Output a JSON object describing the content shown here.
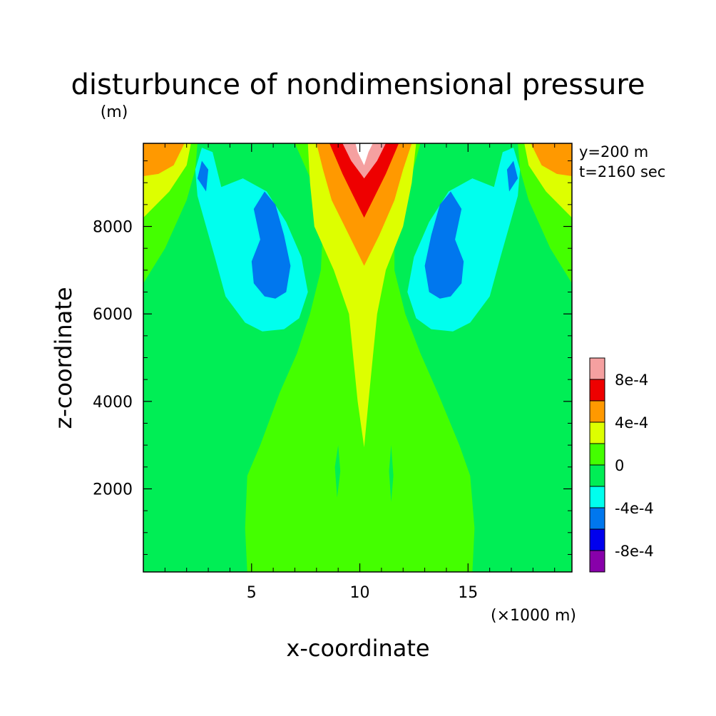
{
  "chart_data": {
    "type": "heatmap",
    "title": "disturbunce of nondimensional pressure",
    "ylabel_unit": "(m)",
    "xlabel": "x-coordinate",
    "xlabel_unit": "(×1000 m)",
    "ylabel": "z-coordinate",
    "annotations": [
      "y=200 m",
      "t=2160 sec"
    ],
    "xlim": [
      0,
      19.8
    ],
    "ylim": [
      100,
      9900
    ],
    "x_ticks": [
      {
        "value": 5,
        "label": "5"
      },
      {
        "value": 10,
        "label": "10"
      },
      {
        "value": 15,
        "label": "15"
      }
    ],
    "y_ticks": [
      {
        "value": 2000,
        "label": "2000"
      },
      {
        "value": 4000,
        "label": "4000"
      },
      {
        "value": 6000,
        "label": "6000"
      },
      {
        "value": 8000,
        "label": "8000"
      }
    ],
    "colorbar": {
      "levels": [
        -0.001,
        -0.0008,
        -0.0006,
        -0.0004,
        -0.0002,
        0,
        0.0002,
        0.0004,
        0.0006,
        0.0008,
        0.001
      ],
      "colors": [
        "#8800aa",
        "#0000ee",
        "#0077ee",
        "#00ffee",
        "#00ee55",
        "#44ff00",
        "#ddff00",
        "#ff9900",
        "#ee0000",
        "#f5a0a0"
      ],
      "labels": [
        {
          "value": 0.0008,
          "label": "8e-4"
        },
        {
          "value": 0.0004,
          "label": "4e-4"
        },
        {
          "value": 0,
          "label": "0"
        },
        {
          "value": -0.0004,
          "label": "-4e-4"
        },
        {
          "value": -0.0008,
          "label": "-8e-4"
        }
      ]
    },
    "contour_regions": [
      {
        "level": 0,
        "color": "#44ff00",
        "points": [
          [
            4.8,
            100
          ],
          [
            4.7,
            1100
          ],
          [
            4.8,
            2300
          ],
          [
            5.4,
            3000
          ],
          [
            6.3,
            4200
          ],
          [
            7.1,
            5100
          ],
          [
            7.7,
            6000
          ],
          [
            8.2,
            7000
          ],
          [
            8.3,
            8000
          ],
          [
            7.8,
            9000
          ],
          [
            7.0,
            9900
          ],
          [
            12.8,
            9900
          ],
          [
            12.3,
            9000
          ],
          [
            11.6,
            8000
          ],
          [
            11.6,
            7000
          ],
          [
            12.1,
            6000
          ],
          [
            12.8,
            5100
          ],
          [
            13.6,
            4200
          ],
          [
            14.6,
            3000
          ],
          [
            15.1,
            2300
          ],
          [
            15.3,
            1100
          ],
          [
            15.2,
            100
          ]
        ]
      },
      {
        "level": 0,
        "color": "#44ff00",
        "points": [
          [
            0,
            9900
          ],
          [
            2.5,
            9900
          ],
          [
            2.4,
            9300
          ],
          [
            2.0,
            8600
          ],
          [
            1.0,
            7500
          ],
          [
            0,
            6700
          ]
        ]
      },
      {
        "level": 0,
        "color": "#44ff00",
        "points": [
          [
            19.8,
            9900
          ],
          [
            17.3,
            9900
          ],
          [
            17.4,
            9300
          ],
          [
            17.8,
            8600
          ],
          [
            18.8,
            7500
          ],
          [
            19.8,
            6700
          ]
        ]
      },
      {
        "level": 0.0002,
        "color": "#ddff00",
        "points": [
          [
            10.2,
            2950
          ],
          [
            9.9,
            4000
          ],
          [
            9.7,
            5000
          ],
          [
            9.5,
            6000
          ],
          [
            8.8,
            7000
          ],
          [
            7.9,
            8000
          ],
          [
            7.7,
            9000
          ],
          [
            7.6,
            9900
          ],
          [
            12.6,
            9900
          ],
          [
            12.4,
            9000
          ],
          [
            12.0,
            8000
          ],
          [
            11.2,
            7000
          ],
          [
            10.8,
            6000
          ],
          [
            10.6,
            5000
          ],
          [
            10.4,
            4000
          ]
        ]
      },
      {
        "level": 0.0002,
        "color": "#ddff00",
        "points": [
          [
            0,
            9900
          ],
          [
            2.2,
            9900
          ],
          [
            2.0,
            9400
          ],
          [
            1.2,
            8800
          ],
          [
            0,
            8200
          ]
        ]
      },
      {
        "level": 0.0002,
        "color": "#ddff00",
        "points": [
          [
            19.8,
            9900
          ],
          [
            17.6,
            9900
          ],
          [
            17.8,
            9400
          ],
          [
            18.6,
            8800
          ],
          [
            19.8,
            8200
          ]
        ]
      },
      {
        "level": 0.0004,
        "color": "#ff9900",
        "points": [
          [
            10.2,
            7100
          ],
          [
            9.5,
            7800
          ],
          [
            8.7,
            8600
          ],
          [
            8.3,
            9300
          ],
          [
            8.0,
            9900
          ],
          [
            12.4,
            9900
          ],
          [
            12.0,
            9300
          ],
          [
            11.6,
            8600
          ],
          [
            10.9,
            7800
          ]
        ]
      },
      {
        "level": 0.0004,
        "color": "#ff9900",
        "points": [
          [
            0,
            9900
          ],
          [
            1.9,
            9900
          ],
          [
            1.4,
            9400
          ],
          [
            0.7,
            9200
          ],
          [
            0,
            9150
          ]
        ]
      },
      {
        "level": 0.0004,
        "color": "#ff9900",
        "points": [
          [
            19.8,
            9900
          ],
          [
            17.9,
            9900
          ],
          [
            18.4,
            9400
          ],
          [
            19.1,
            9200
          ],
          [
            19.8,
            9150
          ]
        ]
      },
      {
        "level": 0.0006,
        "color": "#ee0000",
        "points": [
          [
            10.2,
            8200
          ],
          [
            9.7,
            8700
          ],
          [
            9.2,
            9200
          ],
          [
            8.6,
            9900
          ],
          [
            11.8,
            9900
          ],
          [
            11.2,
            9200
          ],
          [
            10.7,
            8700
          ]
        ]
      },
      {
        "level": 0.0008,
        "color": "#f5a0a0",
        "points": [
          [
            10.2,
            9100
          ],
          [
            9.6,
            9500
          ],
          [
            9.2,
            9900
          ],
          [
            11.2,
            9900
          ],
          [
            10.8,
            9500
          ]
        ]
      },
      {
        "level": 0.001,
        "color": "#ffffff",
        "points": [
          [
            10.2,
            9400
          ],
          [
            9.9,
            9700
          ],
          [
            9.8,
            9900
          ],
          [
            10.6,
            9900
          ],
          [
            10.4,
            9700
          ]
        ]
      },
      {
        "level": -0.0002,
        "color": "#00ffee",
        "points": [
          [
            5.5,
            5600
          ],
          [
            4.7,
            5800
          ],
          [
            3.8,
            6400
          ],
          [
            3.3,
            7300
          ],
          [
            2.9,
            8000
          ],
          [
            2.5,
            8700
          ],
          [
            2.4,
            9300
          ],
          [
            2.7,
            9800
          ],
          [
            3.2,
            9700
          ],
          [
            3.6,
            8900
          ],
          [
            4.6,
            9100
          ],
          [
            5.7,
            8800
          ],
          [
            6.6,
            8100
          ],
          [
            7.3,
            7300
          ],
          [
            7.6,
            6500
          ],
          [
            7.2,
            5900
          ],
          [
            6.5,
            5650
          ]
        ]
      },
      {
        "level": -0.0002,
        "color": "#00ffee",
        "points": [
          [
            14.3,
            5600
          ],
          [
            15.1,
            5800
          ],
          [
            16.0,
            6400
          ],
          [
            16.5,
            7300
          ],
          [
            16.9,
            8000
          ],
          [
            17.3,
            8700
          ],
          [
            17.4,
            9300
          ],
          [
            17.1,
            9800
          ],
          [
            16.6,
            9700
          ],
          [
            16.2,
            8900
          ],
          [
            15.2,
            9100
          ],
          [
            14.1,
            8800
          ],
          [
            13.2,
            8100
          ],
          [
            12.5,
            7300
          ],
          [
            12.2,
            6500
          ],
          [
            12.6,
            5900
          ],
          [
            13.3,
            5650
          ]
        ]
      },
      {
        "level": -0.0004,
        "color": "#0077ee",
        "points": [
          [
            5.6,
            6400
          ],
          [
            5.1,
            6700
          ],
          [
            5.0,
            7200
          ],
          [
            5.4,
            7700
          ],
          [
            5.1,
            8400
          ],
          [
            5.6,
            8800
          ],
          [
            6.1,
            8500
          ],
          [
            6.5,
            7800
          ],
          [
            6.8,
            7100
          ],
          [
            6.6,
            6500
          ],
          [
            6.1,
            6350
          ]
        ]
      },
      {
        "level": -0.0004,
        "color": "#0077ee",
        "points": [
          [
            14.2,
            6400
          ],
          [
            14.7,
            6700
          ],
          [
            14.8,
            7200
          ],
          [
            14.4,
            7700
          ],
          [
            14.7,
            8400
          ],
          [
            14.2,
            8800
          ],
          [
            13.7,
            8500
          ],
          [
            13.3,
            7800
          ],
          [
            13.0,
            7100
          ],
          [
            13.2,
            6500
          ],
          [
            13.7,
            6350
          ]
        ]
      },
      {
        "level": -0.0004,
        "color": "#0077ee",
        "points": [
          [
            2.9,
            8800
          ],
          [
            2.5,
            9100
          ],
          [
            2.7,
            9500
          ],
          [
            3.0,
            9300
          ]
        ]
      },
      {
        "level": -0.0004,
        "color": "#0077ee",
        "points": [
          [
            16.9,
            8800
          ],
          [
            17.3,
            9100
          ],
          [
            17.1,
            9500
          ],
          [
            16.8,
            9300
          ]
        ]
      },
      {
        "level": 0,
        "color": "#00ee55",
        "points": [
          [
            8.95,
            1800
          ],
          [
            8.85,
            2500
          ],
          [
            9.0,
            3000
          ],
          [
            9.1,
            2400
          ]
        ]
      },
      {
        "level": 0,
        "color": "#00ee55",
        "points": [
          [
            11.45,
            1700
          ],
          [
            11.35,
            2400
          ],
          [
            11.45,
            3000
          ],
          [
            11.55,
            2300
          ]
        ]
      }
    ]
  }
}
